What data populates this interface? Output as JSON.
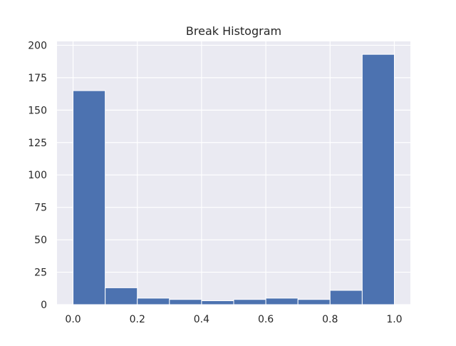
{
  "chart_data": {
    "type": "bar",
    "title": "Break Histogram",
    "xlabel": "",
    "ylabel": "",
    "bin_edges": [
      0.0,
      0.1,
      0.2,
      0.3,
      0.4,
      0.5,
      0.6,
      0.7,
      0.8,
      0.9,
      1.0
    ],
    "values": [
      165,
      13,
      5,
      4,
      3,
      4,
      5,
      4,
      11,
      193
    ],
    "xlim": [
      -0.05,
      1.05
    ],
    "ylim": [
      0,
      203
    ],
    "x_ticks": [
      "0.0",
      "0.2",
      "0.4",
      "0.6",
      "0.8",
      "1.0"
    ],
    "y_ticks": [
      "0",
      "25",
      "50",
      "75",
      "100",
      "125",
      "150",
      "175",
      "200"
    ],
    "grid": true,
    "colors": {
      "bar": "#4c72b0",
      "bar_edge": "#ffffff",
      "plot_background": "#eaeaf2",
      "grid": "#ffffff",
      "text": "#262626"
    }
  }
}
